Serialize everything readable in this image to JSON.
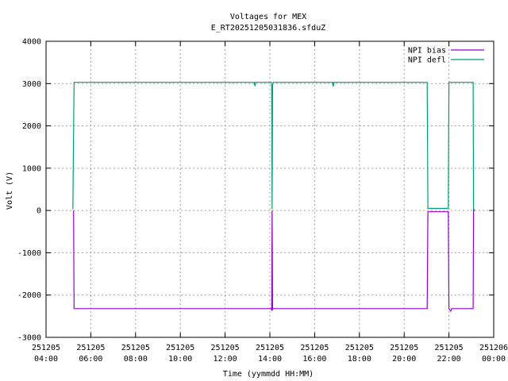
{
  "chart_data": {
    "type": "line",
    "title": "Voltages for MEX",
    "subtitle": "E_RT20251205031836.sfduZ",
    "xlabel": "Time (yymmdd HH:MM)",
    "ylabel": "Volt (V)",
    "ylim": [
      -3000,
      4000
    ],
    "yticks": [
      -3000,
      -2000,
      -1000,
      0,
      1000,
      2000,
      3000,
      4000
    ],
    "ytick_labels": [
      "-3000",
      "-2000",
      "-1000",
      "0",
      "1000",
      "2000",
      "3000",
      "4000"
    ],
    "xlim_hours": [
      4,
      24
    ],
    "xticks": [
      {
        "h": 4,
        "date": "251205",
        "time": "04:00"
      },
      {
        "h": 6,
        "date": "251205",
        "time": "06:00"
      },
      {
        "h": 8,
        "date": "251205",
        "time": "08:00"
      },
      {
        "h": 10,
        "date": "251205",
        "time": "10:00"
      },
      {
        "h": 12,
        "date": "251205",
        "time": "12:00"
      },
      {
        "h": 14,
        "date": "251205",
        "time": "14:00"
      },
      {
        "h": 16,
        "date": "251205",
        "time": "16:00"
      },
      {
        "h": 18,
        "date": "251205",
        "time": "18:00"
      },
      {
        "h": 20,
        "date": "251205",
        "time": "20:00"
      },
      {
        "h": 22,
        "date": "251205",
        "time": "22:00"
      },
      {
        "h": 24,
        "date": "251206",
        "time": "00:00"
      }
    ],
    "grid": true,
    "legend_position": "top-right",
    "series": [
      {
        "name": "NPI bias",
        "color": "#9400d3",
        "points": [
          [
            5.23,
            0
          ],
          [
            5.25,
            -2320
          ],
          [
            14.05,
            -2320
          ],
          [
            14.08,
            -2350
          ],
          [
            14.1,
            0
          ],
          [
            14.12,
            -2350
          ],
          [
            14.15,
            -2320
          ],
          [
            21.03,
            -2320
          ],
          [
            21.06,
            -30
          ],
          [
            21.97,
            -30
          ],
          [
            22.0,
            -2320
          ],
          [
            22.08,
            -2380
          ],
          [
            22.12,
            -2320
          ],
          [
            23.08,
            -2320
          ],
          [
            23.1,
            0
          ],
          [
            23.15,
            0
          ]
        ]
      },
      {
        "name": "NPI defl",
        "color": "#009e73",
        "points": [
          [
            5.2,
            30
          ],
          [
            5.25,
            3030
          ],
          [
            13.3,
            3030
          ],
          [
            13.33,
            2940
          ],
          [
            13.36,
            3030
          ],
          [
            14.06,
            3030
          ],
          [
            14.08,
            2950
          ],
          [
            14.1,
            30
          ],
          [
            14.12,
            2950
          ],
          [
            14.15,
            3030
          ],
          [
            16.8,
            3030
          ],
          [
            16.83,
            2930
          ],
          [
            16.86,
            3030
          ],
          [
            21.03,
            3030
          ],
          [
            21.06,
            50
          ],
          [
            21.97,
            50
          ],
          [
            22.0,
            3030
          ],
          [
            23.08,
            3030
          ],
          [
            23.1,
            20
          ],
          [
            23.15,
            20
          ]
        ]
      }
    ]
  }
}
